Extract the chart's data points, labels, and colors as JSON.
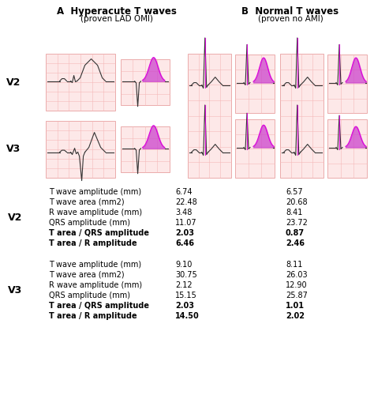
{
  "title_A_bold": "A  Hyperacute T waves",
  "subtitle_A": "(proven LAD OMI)",
  "title_B_bold": "B  Normal T waves",
  "subtitle_B": "(proven no AMI)",
  "bg_color": "#ffffff",
  "ecg_bg": "#fde8e8",
  "ecg_grid": "#f5b8b8",
  "ecg_border": "#e8a0a0",
  "magenta": "#cc44cc",
  "magenta_line": "#dd00dd",
  "ecg_line": "#333333",
  "rows_V2": [
    {
      "label": "T wave amplitude (mm)",
      "A": "6.74",
      "B": "6.57",
      "bold": false
    },
    {
      "label": "T wave area (mm2)",
      "A": "22.48",
      "B": "20.68",
      "bold": false
    },
    {
      "label": "R wave amplitude (mm)",
      "A": "3.48",
      "B": "8.41",
      "bold": false
    },
    {
      "label": "QRS amplitude (mm)",
      "A": "11.07",
      "B": "23.72",
      "bold": false
    },
    {
      "label": "T area / QRS amplitude",
      "A": "2.03",
      "B": "0.87",
      "bold": true
    },
    {
      "label": "T area / R amplitude",
      "A": "6.46",
      "B": "2.46",
      "bold": true
    }
  ],
  "rows_V3": [
    {
      "label": "T wave amplitude (mm)",
      "A": "9.10",
      "B": "8.11",
      "bold": false
    },
    {
      "label": "T wave area (mm2)",
      "A": "30.75",
      "B": "26.03",
      "bold": false
    },
    {
      "label": "R wave amplitude (mm)",
      "A": "2.12",
      "B": "12.90",
      "bold": false
    },
    {
      "label": "QRS amplitude (mm)",
      "A": "15.15",
      "B": "25.87",
      "bold": false
    },
    {
      "label": "T area / QRS amplitude",
      "A": "2.03",
      "B": "1.01",
      "bold": true
    },
    {
      "label": "T area / R amplitude",
      "A": "14.50",
      "B": "2.02",
      "bold": true
    }
  ]
}
